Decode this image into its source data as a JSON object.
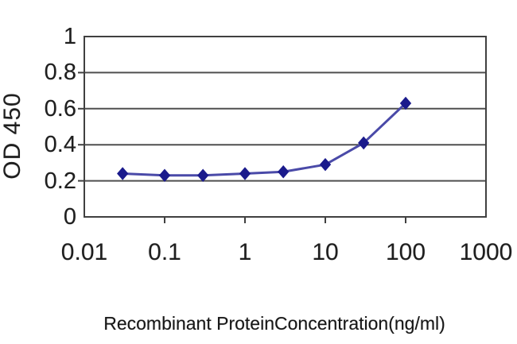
{
  "window": {
    "background": "#ffffff"
  },
  "chart_data": {
    "type": "line",
    "title": "",
    "xlabel": "Recombinant ProteinConcentration(ng/ml)",
    "ylabel": "OD 450",
    "x_scale": "log",
    "xlim": [
      0.01,
      1000
    ],
    "ylim": [
      0,
      1
    ],
    "x": [
      0.03,
      0.1,
      0.3,
      1,
      3,
      10,
      30,
      100
    ],
    "values": [
      0.24,
      0.23,
      0.23,
      0.24,
      0.25,
      0.29,
      0.41,
      0.63
    ],
    "x_tick_values": [
      0.01,
      0.1,
      1,
      10,
      100,
      1000
    ],
    "x_tick_labels": [
      "0.01",
      "0.1",
      "1",
      "10",
      "100",
      "1000"
    ],
    "y_tick_values": [
      0,
      0.2,
      0.4,
      0.6,
      0.8,
      1
    ],
    "y_tick_labels": [
      "0",
      "0.2",
      "0.4",
      "0.6",
      "0.8",
      "1"
    ],
    "grid": "horizontal",
    "legend": "none",
    "marker": "diamond",
    "colors": {
      "line": "#4a4aa8",
      "marker": "#1a1a8c",
      "grid": "#4f4f4f",
      "axis": "#404040",
      "text": "#1e1e1e",
      "plot_background": "#ffffff"
    }
  }
}
